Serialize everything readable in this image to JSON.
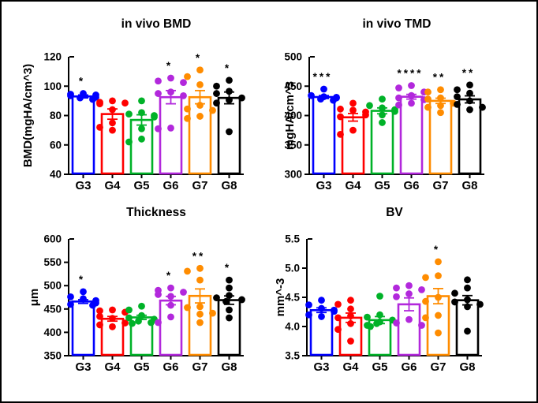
{
  "figure": {
    "background": "#ffffff",
    "border_color": "#000000",
    "axis_color": "#000000"
  },
  "chart_data": [
    {
      "type": "bar",
      "subtype": "bar-with-scatter-and-sem",
      "title": "in vivo BMD",
      "ylabel": "BMD(mgHA/cm^3)",
      "ylim": [
        40,
        120
      ],
      "yticks": [
        40,
        60,
        80,
        100,
        120
      ],
      "ytick_labels": [
        "40",
        "60",
        "80",
        "100",
        "120"
      ],
      "categories": [
        "G3",
        "G4",
        "G5",
        "G6",
        "G7",
        "G8"
      ],
      "colors": [
        "#0000ff",
        "#ff0000",
        "#00b228",
        "#b228dc",
        "#ff8c00",
        "#000000"
      ],
      "bar_means": [
        93,
        81,
        77,
        92.5,
        92.5,
        92
      ],
      "bar_sem": [
        1,
        3.5,
        3.5,
        4.5,
        4.5,
        4
      ],
      "significance": [
        "*",
        "",
        "",
        "*",
        "*",
        "*"
      ],
      "points": [
        [
          95,
          94.5,
          94,
          93.5,
          92.5,
          92,
          91
        ],
        [
          90,
          89,
          88.5,
          88,
          84,
          75,
          72,
          70
        ],
        [
          90,
          82,
          81,
          80,
          79,
          71,
          64,
          62
        ],
        [
          105.5,
          103.5,
          102.5,
          96,
          95,
          93.5,
          71.5,
          71
        ],
        [
          111,
          106.5,
          101,
          87,
          84.5,
          83.5,
          79.5,
          78
        ],
        [
          104,
          100,
          96.5,
          95,
          92,
          90.5,
          88.5,
          69
        ]
      ]
    },
    {
      "type": "bar",
      "subtype": "bar-with-scatter-and-sem",
      "title": "in vivo TMD",
      "ylabel": "mgHA/cm^3",
      "ylim": [
        300,
        500
      ],
      "yticks": [
        300,
        350,
        400,
        450,
        500
      ],
      "ytick_labels": [
        "300",
        "350",
        "400",
        "450",
        "500"
      ],
      "categories": [
        "G3",
        "G4",
        "G5",
        "G6",
        "G7",
        "G8"
      ],
      "colors": [
        "#0000ff",
        "#ff0000",
        "#00b228",
        "#b228dc",
        "#ff8c00",
        "#000000"
      ],
      "bar_means": [
        431.5,
        397,
        408,
        432,
        425,
        427.5
      ],
      "bar_sem": [
        2.5,
        6.5,
        5,
        4,
        4.5,
        6
      ],
      "significance": [
        "***",
        "",
        "",
        "****",
        "**",
        "**"
      ],
      "points": [
        [
          445,
          434,
          432,
          431,
          430,
          428,
          426
        ],
        [
          421,
          411,
          409,
          406,
          401,
          398,
          375,
          368
        ],
        [
          428,
          417,
          413,
          410,
          407,
          401,
          388
        ],
        [
          451,
          447,
          440,
          434,
          430,
          427,
          421,
          418
        ],
        [
          444,
          440,
          430,
          428,
          421,
          417,
          414,
          405
        ],
        [
          452,
          444,
          438,
          432,
          425,
          419,
          414,
          410
        ]
      ]
    },
    {
      "type": "bar",
      "subtype": "bar-with-scatter-and-sem",
      "title": "Thickness",
      "ylabel": "μm",
      "ylim": [
        350,
        600
      ],
      "yticks": [
        350,
        400,
        450,
        500,
        550,
        600
      ],
      "ytick_labels": [
        "350",
        "400",
        "450",
        "500",
        "550",
        "600"
      ],
      "categories": [
        "G3",
        "G4",
        "G5",
        "G6",
        "G7",
        "G8"
      ],
      "colors": [
        "#0000ff",
        "#ff0000",
        "#00b228",
        "#b228dc",
        "#ff8c00",
        "#000000"
      ],
      "bar_means": [
        466,
        429,
        432,
        468,
        478,
        469
      ],
      "bar_sem": [
        4,
        5,
        4.5,
        9,
        15,
        9
      ],
      "significance": [
        "*",
        "",
        "",
        "*",
        "**",
        "*"
      ],
      "points": [
        [
          487,
          476,
          472,
          468,
          463,
          460,
          458
        ],
        [
          448,
          446,
          443,
          434,
          430,
          420,
          416,
          412
        ],
        [
          456,
          448,
          436,
          431,
          428,
          424,
          421,
          419
        ],
        [
          495,
          490,
          486,
          481,
          477,
          458,
          433,
          421
        ],
        [
          537,
          531,
          512,
          455,
          453,
          441,
          439,
          421
        ],
        [
          512,
          495,
          479,
          474,
          470,
          466,
          448,
          431
        ]
      ]
    },
    {
      "type": "bar",
      "subtype": "bar-with-scatter-and-sem",
      "title": "BV",
      "ylabel": "mm^-3",
      "ylim": [
        3.5,
        5.5
      ],
      "yticks": [
        3.5,
        4.0,
        4.5,
        5.0,
        5.5
      ],
      "ytick_labels": [
        "3.5",
        "4.0",
        "4.5",
        "5.0",
        "5.5"
      ],
      "categories": [
        "G3",
        "G4",
        "G5",
        "G6",
        "G7",
        "G8"
      ],
      "colors": [
        "#0000ff",
        "#ff0000",
        "#00b228",
        "#b228dc",
        "#ff8c00",
        "#000000"
      ],
      "bar_means": [
        4.28,
        4.15,
        4.11,
        4.38,
        4.52,
        4.45
      ],
      "bar_sem": [
        0.04,
        0.08,
        0.06,
        0.11,
        0.13,
        0.08
      ],
      "significance": [
        "",
        "",
        "",
        "",
        "*",
        ""
      ],
      "points": [
        [
          4.45,
          4.37,
          4.31,
          4.28,
          4.26,
          4.2,
          4.17
        ],
        [
          4.45,
          4.38,
          4.3,
          4.18,
          4.15,
          4.05,
          3.95,
          3.75
        ],
        [
          4.52,
          4.2,
          4.16,
          4.11,
          4.08,
          4.05,
          4.02,
          4.0
        ],
        [
          4.7,
          4.66,
          4.63,
          4.56,
          4.51,
          4.12,
          4.06,
          4.02
        ],
        [
          5.11,
          4.87,
          4.84,
          4.5,
          4.43,
          4.19,
          4.15,
          3.89
        ],
        [
          4.8,
          4.66,
          4.57,
          4.46,
          4.42,
          4.38,
          4.34,
          3.92
        ]
      ]
    }
  ]
}
